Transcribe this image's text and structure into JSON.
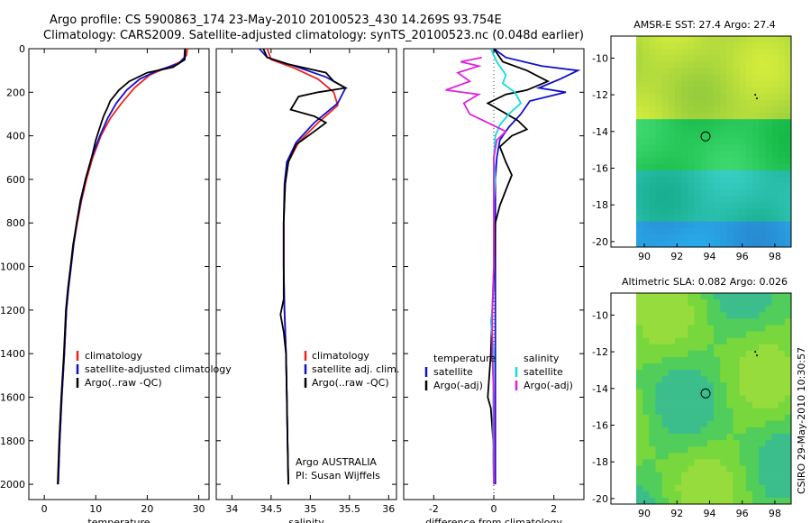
{
  "title": {
    "line1": "Argo profile: CS 5900863_174 23-May-2010 20100523_430 14.269S 93.754E",
    "line2": "Climatology: CARS2009. Satellite-adjusted climatology: synTS_20100523.nc (0.048d earlier)"
  },
  "colors": {
    "climatology": "#ee2222",
    "satellite": "#1010cc",
    "argo": "#000000",
    "salinity_satellite": "#11dddd",
    "salinity_argo": "#dd22dd"
  },
  "chart_data": [
    {
      "id": "temperature",
      "type": "line",
      "xlabel": "temperature",
      "ylabel": "",
      "xlim": [
        -3,
        32
      ],
      "ylim": [
        2070,
        0
      ],
      "y_reversed": true,
      "xticks": [
        0,
        10,
        20,
        30
      ],
      "yticks": [
        0,
        200,
        400,
        600,
        800,
        1000,
        1200,
        1400,
        1600,
        1800,
        2000
      ],
      "legend": [
        "climatology",
        "satellite-adjusted climatology",
        "Argo(..raw -QC)"
      ],
      "legend_position": "bottom-center",
      "series": [
        {
          "name": "climatology",
          "color_key": "climatology",
          "points": [
            [
              27.8,
              0
            ],
            [
              27.6,
              30
            ],
            [
              26.5,
              60
            ],
            [
              23.5,
              90
            ],
            [
              20.5,
              120
            ],
            [
              17.5,
              180
            ],
            [
              15,
              250
            ],
            [
              12.8,
              320
            ],
            [
              11,
              400
            ],
            [
              9.4,
              500
            ],
            [
              8.2,
              600
            ],
            [
              7.2,
              700
            ],
            [
              6.4,
              800
            ],
            [
              5.7,
              900
            ],
            [
              5.2,
              1000
            ],
            [
              4.7,
              1100
            ],
            [
              4.3,
              1200
            ],
            [
              3.9,
              1400
            ],
            [
              3.4,
              1600
            ],
            [
              3,
              1800
            ],
            [
              2.7,
              2000
            ]
          ]
        },
        {
          "name": "satellite-adjusted climatology",
          "color_key": "satellite",
          "points": [
            [
              27.3,
              0
            ],
            [
              27.2,
              40
            ],
            [
              26,
              70
            ],
            [
              22,
              100
            ],
            [
              18.5,
              140
            ],
            [
              16,
              190
            ],
            [
              14,
              250
            ],
            [
              12.3,
              320
            ],
            [
              10.8,
              400
            ],
            [
              9.2,
              500
            ],
            [
              8,
              600
            ],
            [
              7.1,
              700
            ],
            [
              6.3,
              800
            ],
            [
              5.7,
              900
            ],
            [
              5.2,
              1000
            ],
            [
              4.7,
              1100
            ],
            [
              4.3,
              1200
            ],
            [
              3.9,
              1400
            ],
            [
              3.4,
              1600
            ],
            [
              3,
              1800
            ],
            [
              2.7,
              2000
            ]
          ]
        },
        {
          "name": "Argo(..raw -QC)",
          "color_key": "argo",
          "points": [
            [
              27.4,
              0
            ],
            [
              27.3,
              50
            ],
            [
              25,
              85
            ],
            [
              20,
              110
            ],
            [
              16.5,
              150
            ],
            [
              14.5,
              190
            ],
            [
              12.8,
              240
            ],
            [
              12.3,
              270
            ],
            [
              11.5,
              310
            ],
            [
              10.8,
              360
            ],
            [
              10,
              420
            ],
            [
              9.2,
              500
            ],
            [
              8,
              600
            ],
            [
              7,
              700
            ],
            [
              6.3,
              800
            ],
            [
              5.6,
              900
            ],
            [
              5.1,
              1000
            ],
            [
              4.6,
              1100
            ],
            [
              4.2,
              1200
            ],
            [
              3.8,
              1400
            ],
            [
              3.3,
              1600
            ],
            [
              2.9,
              1800
            ],
            [
              2.6,
              2000
            ]
          ]
        }
      ]
    },
    {
      "id": "salinity",
      "type": "line",
      "xlabel": "salinity",
      "ylabel": "",
      "xlim": [
        33.8,
        36.1
      ],
      "ylim": [
        2070,
        0
      ],
      "y_reversed": true,
      "xticks": [
        34,
        34.5,
        35,
        35.5,
        36
      ],
      "legend": [
        "climatology",
        "satellite adj. clim.",
        "Argo(..raw -QC)"
      ],
      "legend_position": "bottom-center",
      "annotations": [
        "Argo AUSTRALIA",
        "PI: Susan Wijffels"
      ],
      "series": [
        {
          "name": "climatology",
          "color_key": "climatology",
          "points": [
            [
              34.45,
              0
            ],
            [
              34.5,
              50
            ],
            [
              34.8,
              90
            ],
            [
              35.1,
              140
            ],
            [
              35.3,
              200
            ],
            [
              35.35,
              260
            ],
            [
              35.1,
              340
            ],
            [
              34.85,
              430
            ],
            [
              34.72,
              520
            ],
            [
              34.68,
              620
            ],
            [
              34.66,
              800
            ],
            [
              34.66,
              1000
            ],
            [
              34.67,
              1200
            ],
            [
              34.69,
              1400
            ],
            [
              34.7,
              1600
            ],
            [
              34.71,
              1800
            ],
            [
              34.72,
              2000
            ]
          ]
        },
        {
          "name": "satellite adj. clim.",
          "color_key": "satellite",
          "points": [
            [
              34.35,
              0
            ],
            [
              34.45,
              40
            ],
            [
              34.8,
              80
            ],
            [
              35.2,
              130
            ],
            [
              35.45,
              180
            ],
            [
              35.35,
              250
            ],
            [
              35.05,
              340
            ],
            [
              34.82,
              430
            ],
            [
              34.7,
              520
            ],
            [
              34.67,
              620
            ],
            [
              34.66,
              800
            ],
            [
              34.66,
              1000
            ],
            [
              34.67,
              1200
            ],
            [
              34.69,
              1400
            ],
            [
              34.7,
              1600
            ],
            [
              34.71,
              1800
            ],
            [
              34.72,
              2000
            ]
          ]
        },
        {
          "name": "Argo(..raw -QC)",
          "color_key": "argo",
          "points": [
            [
              34.4,
              0
            ],
            [
              34.45,
              40
            ],
            [
              34.7,
              70
            ],
            [
              35.2,
              110
            ],
            [
              35.3,
              150
            ],
            [
              35.45,
              180
            ],
            [
              35.1,
              200
            ],
            [
              34.85,
              220
            ],
            [
              34.75,
              280
            ],
            [
              35.05,
              310
            ],
            [
              35.2,
              340
            ],
            [
              35.05,
              380
            ],
            [
              34.82,
              440
            ],
            [
              34.72,
              520
            ],
            [
              34.68,
              620
            ],
            [
              34.66,
              800
            ],
            [
              34.66,
              1000
            ],
            [
              34.66,
              1150
            ],
            [
              34.62,
              1220
            ],
            [
              34.66,
              1300
            ],
            [
              34.69,
              1400
            ],
            [
              34.7,
              1600
            ],
            [
              34.71,
              1800
            ],
            [
              34.72,
              2000
            ]
          ]
        }
      ]
    },
    {
      "id": "difference",
      "type": "line",
      "xlabel": "difference from climatology",
      "ylabel": "",
      "xlim": [
        -3,
        3
      ],
      "ylim": [
        2070,
        0
      ],
      "y_reversed": true,
      "xticks": [
        -2,
        0,
        2
      ],
      "legend_groups": [
        {
          "header": "temperature",
          "items": [
            "satellite",
            "Argo(-adj)"
          ]
        },
        {
          "header": "salinity",
          "items": [
            "satellite",
            "Argo(-adj)"
          ]
        }
      ],
      "legend_position": "bottom-center",
      "series": [
        {
          "name": "temperature satellite",
          "color_key": "satellite",
          "points": [
            [
              0,
              0
            ],
            [
              0.4,
              40
            ],
            [
              1.6,
              80
            ],
            [
              2.8,
              100
            ],
            [
              2.2,
              140
            ],
            [
              1.5,
              180
            ],
            [
              2.4,
              200
            ],
            [
              1.2,
              240
            ],
            [
              0.9,
              300
            ],
            [
              0.5,
              360
            ],
            [
              0.2,
              420
            ],
            [
              0.1,
              500
            ],
            [
              0.05,
              600
            ],
            [
              0.05,
              800
            ],
            [
              0.05,
              1000
            ],
            [
              0.05,
              1200
            ],
            [
              0.05,
              1400
            ],
            [
              0.05,
              1600
            ],
            [
              0.05,
              1800
            ],
            [
              0.05,
              2000
            ]
          ]
        },
        {
          "name": "temperature Argo(-adj)",
          "color_key": "argo",
          "points": [
            [
              0,
              0
            ],
            [
              0.3,
              60
            ],
            [
              1.1,
              100
            ],
            [
              1.8,
              150
            ],
            [
              1.1,
              190
            ],
            [
              0.4,
              210
            ],
            [
              -0.2,
              250
            ],
            [
              0.3,
              290
            ],
            [
              0.8,
              330
            ],
            [
              1.1,
              370
            ],
            [
              0.6,
              400
            ],
            [
              0.2,
              450
            ],
            [
              0.4,
              520
            ],
            [
              0.6,
              580
            ],
            [
              0.4,
              650
            ],
            [
              0.2,
              720
            ],
            [
              0.05,
              800
            ],
            [
              0.02,
              1000
            ],
            [
              -0.05,
              1200
            ],
            [
              -0.1,
              1400
            ],
            [
              -0.2,
              1600
            ],
            [
              -0.1,
              1650
            ],
            [
              -0.02,
              1800
            ],
            [
              0,
              2000
            ]
          ]
        },
        {
          "name": "salinity satellite",
          "color_key": "salinity_satellite",
          "points": [
            [
              -0.1,
              0
            ],
            [
              0.1,
              60
            ],
            [
              0.4,
              120
            ],
            [
              0.3,
              160
            ],
            [
              0.7,
              200
            ],
            [
              0.9,
              250
            ],
            [
              0.5,
              300
            ],
            [
              0.2,
              350
            ],
            [
              0.05,
              400
            ],
            [
              0,
              500
            ],
            [
              0.05,
              600
            ],
            [
              0,
              700
            ],
            [
              0,
              800
            ],
            [
              0,
              1000
            ],
            [
              -0.05,
              1200
            ],
            [
              -0.1,
              1250
            ],
            [
              0,
              1400
            ],
            [
              -0.02,
              1600
            ],
            [
              -0.02,
              1800
            ],
            [
              0,
              2000
            ]
          ]
        },
        {
          "name": "salinity Argo(-adj)",
          "color_key": "salinity_argo",
          "points": [
            [
              -0.4,
              40
            ],
            [
              -1.1,
              60
            ],
            [
              -0.5,
              80
            ],
            [
              -1.2,
              110
            ],
            [
              -0.8,
              150
            ],
            [
              -1.6,
              190
            ],
            [
              -0.5,
              210
            ],
            [
              -1.0,
              250
            ],
            [
              -0.8,
              300
            ],
            [
              -0.2,
              340
            ],
            [
              0.4,
              380
            ],
            [
              0.1,
              420
            ],
            [
              0,
              500
            ],
            [
              0,
              800
            ],
            [
              0,
              1000
            ],
            [
              -0.05,
              1200
            ],
            [
              -0.05,
              1400
            ],
            [
              0,
              1600
            ],
            [
              0,
              1800
            ],
            [
              0,
              2000
            ]
          ]
        }
      ]
    },
    {
      "id": "amsr_sst",
      "type": "heatmap",
      "title": "AMSR-E SST: 27.4  Argo: 27.4",
      "xlim": [
        89.5,
        99
      ],
      "ylim": [
        -20.3,
        -8.8
      ],
      "xticks": [
        90,
        92,
        94,
        96,
        98
      ],
      "yticks": [
        -10,
        -12,
        -14,
        -16,
        -18,
        -20
      ],
      "markers": [
        {
          "label": "argo",
          "x": 93.754,
          "y": -14.269
        }
      ],
      "track_points": [
        [
          96.8,
          -12.0
        ],
        [
          96.9,
          -12.2
        ]
      ]
    },
    {
      "id": "altimetric_sla",
      "type": "heatmap",
      "title": "Altimetric SLA: 0.082  Argo: 0.026",
      "xlim": [
        89.5,
        99
      ],
      "ylim": [
        -20.3,
        -8.8
      ],
      "xticks": [
        90,
        92,
        94,
        96,
        98
      ],
      "yticks": [
        -10,
        -12,
        -14,
        -16,
        -18,
        -20
      ],
      "markers": [
        {
          "label": "argo",
          "x": 93.754,
          "y": -14.269
        }
      ],
      "track_points": [
        [
          96.8,
          -12.0
        ],
        [
          96.9,
          -12.2
        ]
      ]
    }
  ],
  "footer": "CSIRO 29-May-2010 10:30:57"
}
